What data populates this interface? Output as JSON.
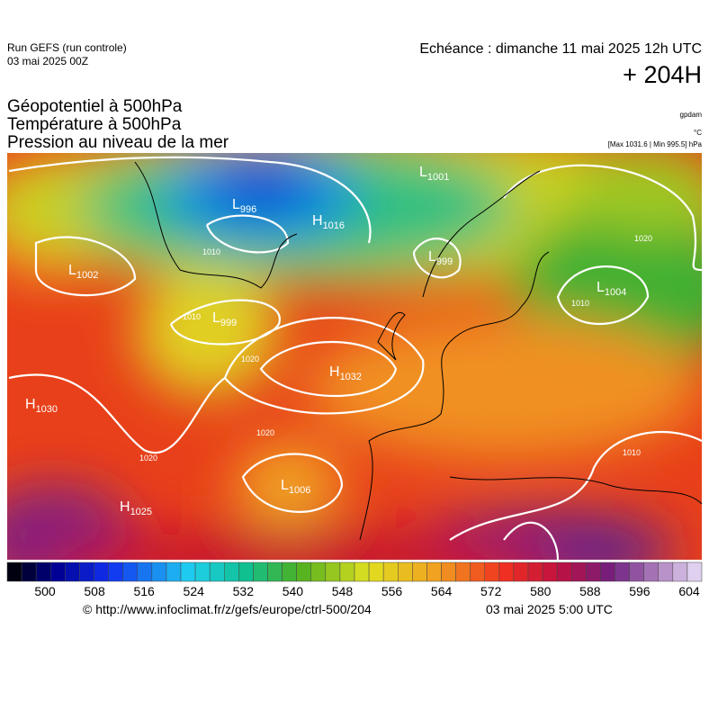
{
  "header": {
    "run": "Run GEFS (run controle)",
    "run_date": "03 mai 2025 00Z",
    "echeance": "Echéance : dimanche 11 mai 2025 12h UTC",
    "lead": "+ 204H",
    "titles": [
      "Géopotentiel à 500hPa",
      "Température à 500hPa",
      "Pression au niveau de la mer"
    ],
    "units": [
      "gpdam",
      "°C",
      "[Max 1031.6 | Min 995.5] hPa"
    ]
  },
  "map": {
    "systems": [
      {
        "kind": "L",
        "value": "996"
      },
      {
        "kind": "H",
        "value": "1016"
      },
      {
        "kind": "L",
        "value": "1001"
      },
      {
        "kind": "L",
        "value": "999"
      },
      {
        "kind": "L",
        "value": "1002"
      },
      {
        "kind": "L",
        "value": "1004"
      },
      {
        "kind": "L",
        "value": "999"
      },
      {
        "kind": "H",
        "value": "1032"
      },
      {
        "kind": "H",
        "value": "1030"
      },
      {
        "kind": "L",
        "value": "1006"
      },
      {
        "kind": "H",
        "value": "1025"
      }
    ],
    "isobar_labels": [
      "1010",
      "1010",
      "1020",
      "1020",
      "1020",
      "1020",
      "1010",
      "1010"
    ]
  },
  "colorbar": {
    "ticks": [
      500,
      508,
      516,
      524,
      532,
      540,
      548,
      556,
      564,
      572,
      580,
      588,
      596,
      604
    ]
  },
  "footer": {
    "source": "© http://www.infoclimat.fr/z/gefs/europe/ctrl-500/204",
    "issued": "03 mai 2025  5:00 UTC"
  }
}
